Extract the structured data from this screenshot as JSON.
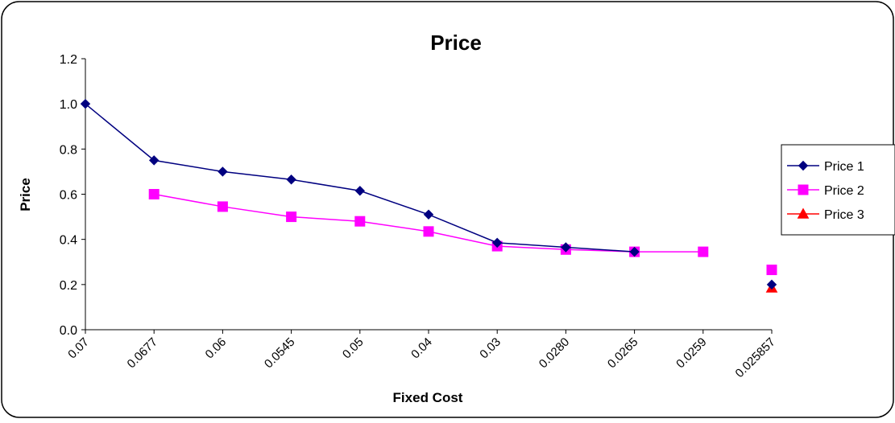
{
  "chart_data": {
    "type": "line",
    "title": "Price",
    "xlabel": "Fixed Cost",
    "ylabel": "Price",
    "categories": [
      "0.07",
      "0.0677",
      "0.06",
      "0.0545",
      "0.05",
      "0.04",
      "0.03",
      "0.0280",
      "0.0265",
      "0.0259",
      "0.025857"
    ],
    "ylim": [
      0.0,
      1.2
    ],
    "yticks": [
      "0.0",
      "0.2",
      "0.4",
      "0.6",
      "0.8",
      "1.0",
      "1.2"
    ],
    "grid": false,
    "legend_position": "right",
    "series": [
      {
        "name": "Price 1",
        "color": "#000080",
        "marker": "diamond",
        "values": [
          1.0,
          0.75,
          0.7,
          0.665,
          0.615,
          0.51,
          0.385,
          0.365,
          0.345,
          null,
          0.2
        ]
      },
      {
        "name": "Price 2",
        "color": "#FF00FF",
        "marker": "square",
        "values": [
          null,
          0.6,
          0.545,
          0.5,
          0.48,
          0.435,
          0.37,
          0.355,
          0.345,
          0.345,
          0.265
        ]
      },
      {
        "name": "Price 3",
        "color": "#FF0000",
        "marker": "triangle",
        "values": [
          null,
          null,
          null,
          null,
          null,
          null,
          null,
          null,
          null,
          null,
          0.185
        ]
      }
    ]
  }
}
